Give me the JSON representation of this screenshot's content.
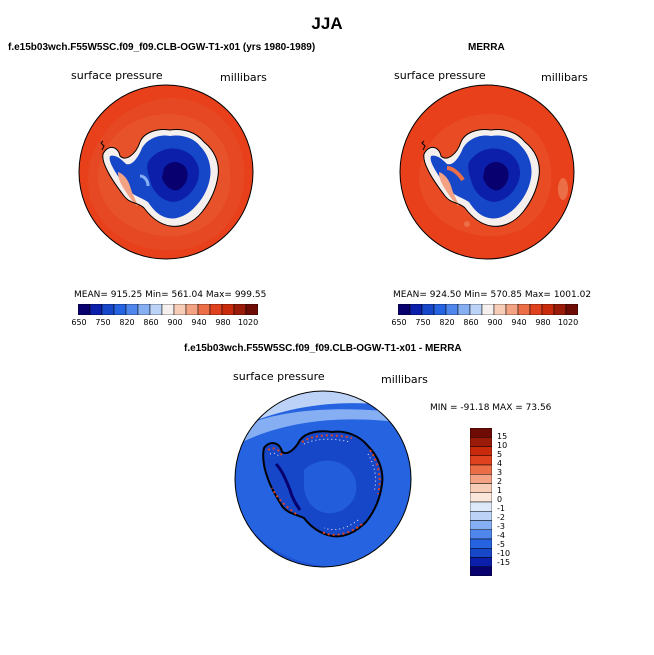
{
  "figure": {
    "season": "JJA"
  },
  "panels": [
    {
      "title": "f.e15b03wch.F55W5SC.f09_f09.CLB-OGW-T1-x01 (yrs 1980-1989)",
      "variable": "surface pressure",
      "units": "millibars",
      "stats": "MEAN= 915.25   Min= 561.04   Max= 999.55"
    },
    {
      "title": "MERRA",
      "variable": "surface pressure",
      "units": "millibars",
      "stats": "MEAN= 924.50   Min= 570.85   Max= 1001.02"
    },
    {
      "title": "f.e15b03wch.F55W5SC.f09_f09.CLB-OGW-T1-x01 - MERRA",
      "variable": "surface pressure",
      "units": "millibars",
      "stats": "MIN = -91.18  MAX =   73.56"
    }
  ],
  "colorbar_top": {
    "labels": [
      "650",
      "750",
      "820",
      "860",
      "900",
      "940",
      "980",
      "1020"
    ],
    "colors": [
      "#08006e",
      "#0b1faa",
      "#1747c9",
      "#2563e0",
      "#4f86ec",
      "#86aef2",
      "#bcd2f7",
      "#f5f0ee",
      "#f8cdb7",
      "#f3a383",
      "#eb6e47",
      "#e0411f",
      "#c82a0b",
      "#9a1b07",
      "#6e0b04"
    ]
  },
  "colorbar_diff": {
    "labels": [
      "15",
      "10",
      "5",
      "4",
      "3",
      "2",
      "1",
      "0",
      "-1",
      "-2",
      "-3",
      "-4",
      "-5",
      "-10",
      "-15"
    ],
    "colors": [
      "#6e0b04",
      "#9a1b07",
      "#c82a0b",
      "#e0411f",
      "#eb6e47",
      "#f3a383",
      "#f8cdb7",
      "#fbe6da",
      "#dde8f8",
      "#bcd2f7",
      "#86aef2",
      "#4f86ec",
      "#2563e0",
      "#1747c9",
      "#0b1faa",
      "#08006e"
    ]
  },
  "chart_data": [
    {
      "type": "heatmap",
      "title": "f.e15b03wch.F55W5SC.f09_f09.CLB-OGW-T1-x01 (yrs 1980-1989)",
      "variable": "surface pressure",
      "units": "millibars",
      "projection": "south polar stereographic",
      "mean": 915.25,
      "min": 561.04,
      "max": 999.55,
      "colorbar_levels": [
        650,
        750,
        820,
        860,
        900,
        940,
        980,
        1020
      ]
    },
    {
      "type": "heatmap",
      "title": "MERRA",
      "variable": "surface pressure",
      "units": "millibars",
      "projection": "south polar stereographic",
      "mean": 924.5,
      "min": 570.85,
      "max": 1001.02,
      "colorbar_levels": [
        650,
        750,
        820,
        860,
        900,
        940,
        980,
        1020
      ]
    },
    {
      "type": "heatmap",
      "title": "f.e15b03wch.F55W5SC.f09_f09.CLB-OGW-T1-x01 - MERRA",
      "variable": "surface pressure",
      "units": "millibars",
      "projection": "south polar stereographic",
      "min": -91.18,
      "max": 73.56,
      "colorbar_levels": [
        15,
        10,
        5,
        4,
        3,
        2,
        1,
        0,
        -1,
        -2,
        -3,
        -4,
        -5,
        -10,
        -15
      ]
    }
  ]
}
